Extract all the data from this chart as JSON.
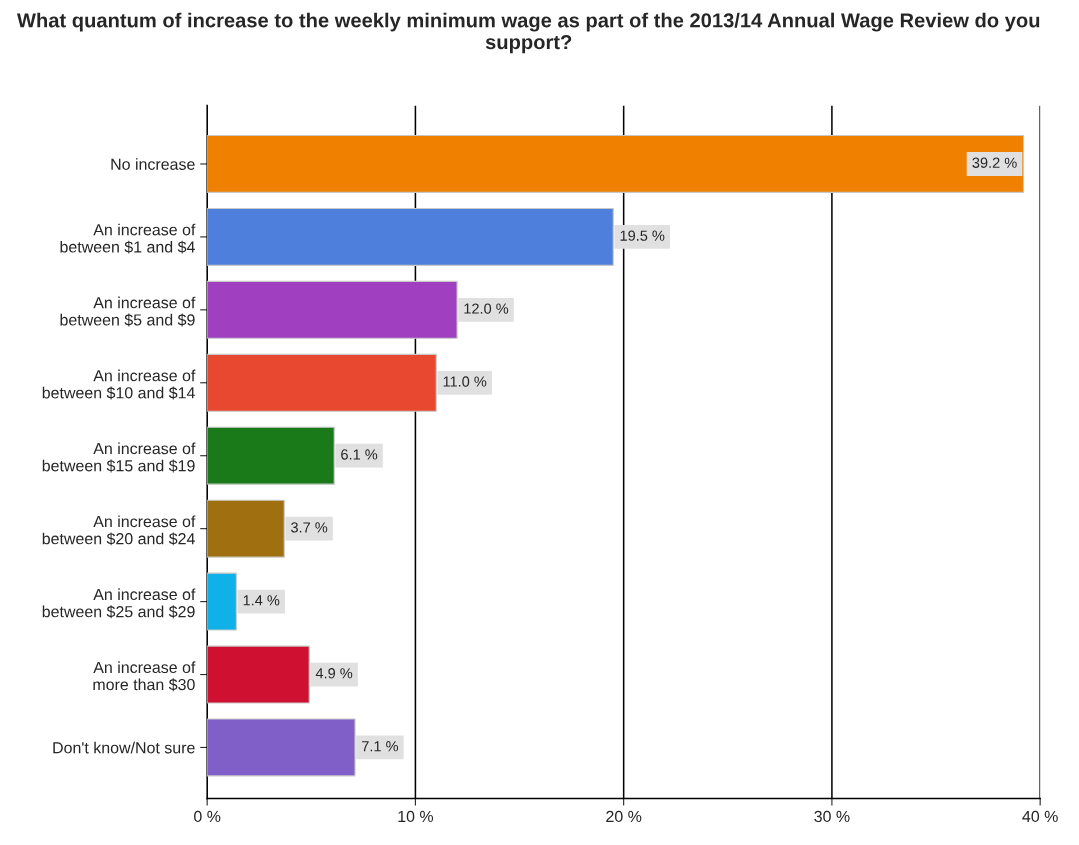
{
  "chart_data": {
    "type": "bar",
    "orientation": "horizontal",
    "title": "What quantum of increase to the weekly minimum wage as part of the 2013/14 Annual Wage Review do you support?",
    "categories": [
      "No increase",
      "An increase of\nbetween $1 and $4",
      "An increase of\nbetween $5 and $9",
      "An increase of\nbetween $10 and $14",
      "An increase of\nbetween $15 and $19",
      "An increase of\nbetween $20 and $24",
      "An increase of\nbetween $25 and $29",
      "An increase of\nmore than $30",
      "Don't know/Not sure"
    ],
    "values": [
      39.2,
      19.5,
      12.0,
      11.0,
      6.1,
      3.7,
      1.4,
      4.9,
      7.1
    ],
    "value_labels": [
      "39.2 %",
      "19.5 %",
      "12.0 %",
      "11.0 %",
      "6.1 %",
      "3.7 %",
      "1.4 %",
      "4.9 %",
      "7.1 %"
    ],
    "colors": [
      "#f08000",
      "#4f7fdc",
      "#a040c0",
      "#e84830",
      "#1a7a1a",
      "#a07010",
      "#10b0e8",
      "#d01030",
      "#8060c8"
    ],
    "xlim": [
      0,
      40
    ],
    "xticks": [
      {
        "value": 0,
        "label": "0 %"
      },
      {
        "value": 10,
        "label": "10 %"
      },
      {
        "value": 20,
        "label": "20 %"
      },
      {
        "value": 30,
        "label": "30 %"
      },
      {
        "value": 40,
        "label": "40 %"
      }
    ],
    "grid": "x"
  }
}
